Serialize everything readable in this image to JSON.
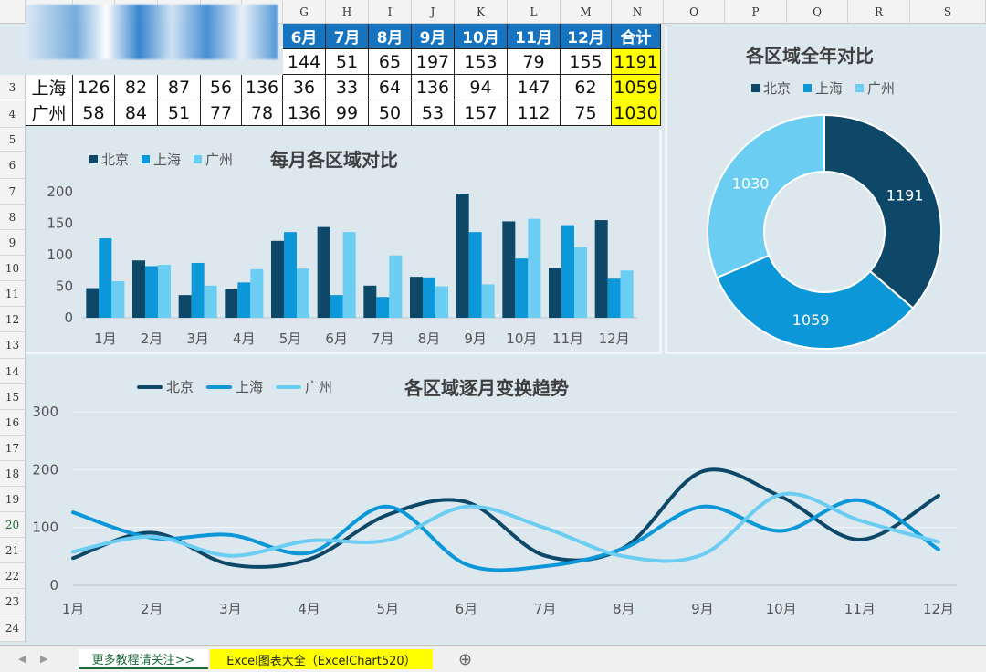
{
  "columns": [
    "G",
    "H",
    "I",
    "J",
    "K",
    "L",
    "M",
    "N",
    "O",
    "P",
    "Q",
    "R",
    "S"
  ],
  "rows": [
    "3",
    "4",
    "5",
    "6",
    "7",
    "8",
    "9",
    "10",
    "11",
    "12",
    "13",
    "14",
    "15",
    "16",
    "17",
    "18",
    "19",
    "20",
    "21",
    "22",
    "23",
    "24"
  ],
  "table": {
    "headers": [
      "6月",
      "7月",
      "8月",
      "9月",
      "10月",
      "11月",
      "12月",
      "合计"
    ],
    "partial_row": [
      "144",
      "51",
      "65",
      "197",
      "153",
      "79",
      "155",
      "1191"
    ],
    "rows": [
      {
        "name": "上海",
        "values": [
          "126",
          "82",
          "87",
          "56",
          "136",
          "36",
          "33",
          "64",
          "136",
          "94",
          "147",
          "62"
        ],
        "total": "1059"
      },
      {
        "name": "广州",
        "values": [
          "58",
          "84",
          "51",
          "77",
          "78",
          "136",
          "99",
          "50",
          "53",
          "157",
          "112",
          "75"
        ],
        "total": "1030"
      }
    ]
  },
  "colors": {
    "beijing": "#0e4868",
    "shanghai": "#0c98d8",
    "guangzhou": "#6ccdf2",
    "total_bg": "#ffff00",
    "header_bg": "#1673c0"
  },
  "charts": {
    "bar": {
      "title": "每月各区域对比",
      "legend": [
        "北京",
        "上海",
        "广州"
      ]
    },
    "donut": {
      "title": "各区域全年对比",
      "legend": [
        "北京",
        "上海",
        "广州"
      ]
    },
    "line": {
      "title": "各区域逐月变换趋势",
      "legend": [
        "北京",
        "上海",
        "广州"
      ]
    }
  },
  "chart_data": [
    {
      "type": "bar",
      "title": "每月各区域对比",
      "categories": [
        "1月",
        "2月",
        "3月",
        "4月",
        "5月",
        "6月",
        "7月",
        "8月",
        "9月",
        "10月",
        "11月",
        "12月"
      ],
      "series": [
        {
          "name": "北京",
          "values": [
            47,
            91,
            36,
            45,
            122,
            144,
            51,
            65,
            197,
            153,
            79,
            155
          ]
        },
        {
          "name": "上海",
          "values": [
            126,
            82,
            87,
            56,
            136,
            36,
            33,
            64,
            136,
            94,
            147,
            62
          ]
        },
        {
          "name": "广州",
          "values": [
            58,
            84,
            51,
            77,
            78,
            136,
            99,
            50,
            53,
            157,
            112,
            75
          ]
        }
      ],
      "yticks": [
        "0",
        "50",
        "100",
        "150",
        "200"
      ],
      "ylim": [
        0,
        200
      ],
      "legend_position": "top-left",
      "grid": false
    },
    {
      "type": "pie",
      "title": "各区域全年对比",
      "labels": [
        "北京",
        "上海",
        "广州"
      ],
      "values": [
        1191,
        1059,
        1030
      ],
      "value_labels": [
        "1191",
        "1059",
        "1030"
      ],
      "legend_position": "top",
      "donut": true
    },
    {
      "type": "line",
      "title": "各区域逐月变换趋势",
      "categories": [
        "1月",
        "2月",
        "3月",
        "4月",
        "5月",
        "6月",
        "7月",
        "8月",
        "9月",
        "10月",
        "11月",
        "12月"
      ],
      "series": [
        {
          "name": "北京",
          "values": [
            47,
            91,
            36,
            45,
            122,
            144,
            51,
            65,
            197,
            153,
            79,
            155
          ]
        },
        {
          "name": "上海",
          "values": [
            126,
            82,
            87,
            56,
            136,
            36,
            33,
            64,
            136,
            94,
            147,
            62
          ]
        },
        {
          "name": "广州",
          "values": [
            58,
            84,
            51,
            77,
            78,
            136,
            99,
            50,
            53,
            157,
            112,
            75
          ]
        }
      ],
      "yticks": [
        "0",
        "100",
        "200",
        "300"
      ],
      "ylim": [
        0,
        300
      ],
      "smooth": true,
      "legend_position": "top-left",
      "grid": true
    }
  ],
  "tabs": {
    "sheet1": "更多教程请关注>>",
    "sheet2": "Excel图表大全（ExcelChart520）",
    "add": "⊕",
    "prev": "◀",
    "next": "▶"
  }
}
